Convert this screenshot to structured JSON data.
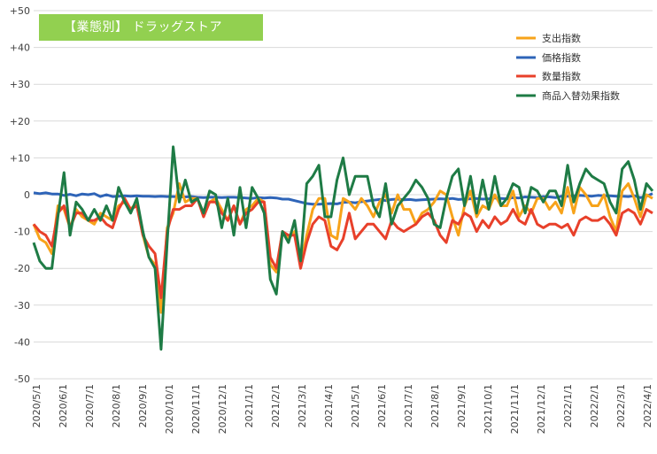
{
  "chart_data": {
    "type": "line",
    "title": "【業態別】 ドラッグストア",
    "xlabel": "",
    "ylabel": "",
    "ylim": [
      -50,
      50
    ],
    "yticks": [
      "+50",
      "+40",
      "+30",
      "+20",
      "+10",
      "0",
      "-10",
      "-20",
      "-30",
      "-40",
      "-50"
    ],
    "yticks_values": [
      50,
      40,
      30,
      20,
      10,
      0,
      -10,
      -20,
      -30,
      -40,
      -50
    ],
    "x_tick_labels": [
      "2020/5/1",
      "2020/6/1",
      "2020/7/1",
      "2020/8/1",
      "2020/9/1",
      "2020/10/1",
      "2020/11/1",
      "2020/12/1",
      "2021/1/1",
      "2021/2/1",
      "2021/3/1",
      "2021/4/1",
      "2021/5/1",
      "2021/6/1",
      "2021/7/1",
      "2021/8/1",
      "2021/9/1",
      "2021/10/1",
      "2021/11/1",
      "2021/12/1",
      "2022/1/1",
      "2022/2/1",
      "2022/3/1",
      "2022/4/1"
    ],
    "grid": true,
    "legend_position": "top-right",
    "colors": {
      "支出指数": "#f7a31a",
      "価格指数": "#2e64b8",
      "数量指数": "#e8402a",
      "商品入替効果指数": "#1e7b45"
    },
    "series": [
      {
        "name": "支出指数",
        "values": [
          -8,
          -12,
          -13,
          -16,
          -3,
          -4,
          -9,
          -4,
          -6,
          -7,
          -8,
          -5,
          -6,
          -7,
          -3,
          -2,
          -4,
          -2,
          -11,
          -17,
          -19,
          -32,
          -9,
          -5,
          3,
          -2,
          -1,
          -1,
          -5,
          -2,
          -1,
          -4,
          -7,
          -3,
          -8,
          -4,
          -3,
          -1,
          -2,
          -19,
          -21,
          -10,
          -12,
          -10,
          -19,
          -11,
          -4,
          -1,
          -1,
          -11,
          -12,
          -1,
          -2,
          -4,
          -1,
          -3,
          -6,
          -2,
          0,
          -5,
          0,
          -4,
          -4,
          -8,
          -5,
          -4,
          -2,
          1,
          0,
          -6,
          -11,
          -3,
          1,
          -6,
          -3,
          -4,
          0,
          -3,
          -3,
          1,
          -6,
          -3,
          -5,
          -1,
          -1,
          -4,
          -2,
          -5,
          2,
          -5,
          2,
          0,
          -3,
          -3,
          0,
          -6,
          -10,
          1,
          3,
          -1,
          -6,
          0,
          -1
        ]
      },
      {
        "name": "価格指数",
        "values": [
          0.5,
          0.3,
          0.5,
          0.2,
          0.2,
          -0.2,
          0.1,
          -0.3,
          0.2,
          0,
          0.3,
          -0.5,
          0,
          -0.5,
          -0.4,
          -0.3,
          -0.4,
          -0.3,
          -0.4,
          -0.4,
          -0.5,
          -0.4,
          -0.5,
          -0.5,
          -0.6,
          -0.6,
          -0.5,
          -0.7,
          -0.8,
          -0.7,
          -0.7,
          -0.8,
          -0.7,
          -0.7,
          -0.8,
          -0.9,
          -1,
          -0.8,
          -0.9,
          -0.8,
          -0.9,
          -1.2,
          -1.2,
          -1.6,
          -2,
          -2.4,
          -2.6,
          -2.6,
          -2.5,
          -2.4,
          -2.5,
          -2.1,
          -2,
          -2.2,
          -1.9,
          -1.7,
          -1.5,
          -1.3,
          -1.6,
          -1.3,
          -1.2,
          -1.4,
          -1.3,
          -1.5,
          -1.4,
          -1.3,
          -1.2,
          -1.1,
          -1.2,
          -1,
          -1.3,
          -1.2,
          -1.1,
          -1,
          -1.2,
          -1.1,
          -0.9,
          -1,
          -1.1,
          -0.8,
          -0.9,
          -0.6,
          -0.7,
          -0.8,
          -0.5,
          -0.6,
          -0.8,
          -0.4,
          -0.4,
          -0.3,
          -0.2,
          -0.3,
          -0.4,
          -0.2,
          -0.3,
          -0.3,
          -0.4,
          -0.4,
          -0.5,
          -0.3,
          -0.8,
          -0.4,
          0.3
        ]
      },
      {
        "name": "数量指数",
        "values": [
          -8,
          -10,
          -11,
          -14,
          -5,
          -3,
          -9,
          -5,
          -5,
          -7,
          -7,
          -6,
          -8,
          -9,
          -4,
          -1,
          -4,
          -3,
          -11,
          -14,
          -16,
          -28,
          -10,
          -4,
          -4,
          -3,
          -3,
          -1,
          -6,
          -2,
          -2,
          -5,
          -7,
          -3,
          -8,
          -5,
          -4,
          -2,
          -2,
          -17,
          -20,
          -10,
          -11,
          -11,
          -20,
          -13,
          -8,
          -6,
          -7,
          -14,
          -15,
          -12,
          -5,
          -12,
          -10,
          -8,
          -8,
          -10,
          -12,
          -7,
          -9,
          -10,
          -9,
          -8,
          -6,
          -5,
          -7,
          -11,
          -13,
          -7,
          -8,
          -5,
          -6,
          -10,
          -7,
          -9,
          -6,
          -8,
          -7,
          -4,
          -7,
          -8,
          -4,
          -8,
          -9,
          -8,
          -8,
          -9,
          -8,
          -11,
          -7,
          -6,
          -7,
          -7,
          -6,
          -8,
          -11,
          -5,
          -4,
          -5,
          -8,
          -4,
          -5
        ]
      },
      {
        "name": "商品入替効果指数",
        "values": [
          -13,
          -18,
          -20,
          -20,
          -6,
          6,
          -11,
          -2,
          -4,
          -7,
          -4,
          -7,
          -3,
          -7,
          2,
          -2,
          -5,
          -1,
          -10,
          -17,
          -20,
          -42,
          -13,
          13,
          -2,
          4,
          -2,
          -1,
          -5,
          1,
          0,
          -9,
          -1,
          -11,
          2,
          -9,
          2,
          -1,
          -5,
          -23,
          -27,
          -10,
          -13,
          -7,
          -18,
          3,
          5,
          8,
          -6,
          -6,
          4,
          10,
          0,
          5,
          5,
          5,
          -3,
          -6,
          3,
          -8,
          -3,
          -1,
          1,
          4,
          2,
          -1,
          -8,
          -9,
          -1,
          5,
          7,
          -3,
          5,
          -5,
          4,
          -4,
          5,
          -3,
          -1,
          3,
          2,
          -5,
          2,
          1,
          -2,
          1,
          1,
          -3,
          8,
          -2,
          3,
          7,
          5,
          4,
          3,
          -2,
          -5,
          7,
          9,
          4,
          -4,
          3,
          1
        ]
      }
    ]
  }
}
